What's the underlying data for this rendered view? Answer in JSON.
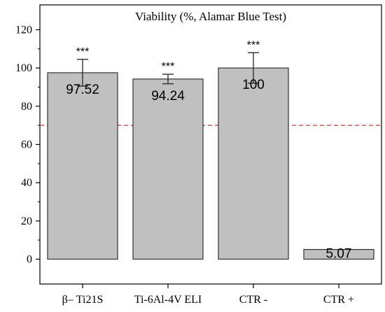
{
  "chart_data": {
    "type": "bar",
    "title": "Viability (%, Alamar Blue Test)",
    "categories": [
      "β– Ti21S",
      "Ti-6Al-4V ELI",
      "CTR -",
      "CTR +"
    ],
    "values": [
      97.52,
      94.24,
      100,
      5.07
    ],
    "value_labels": [
      "97.52",
      "94.24",
      "100",
      "5.07"
    ],
    "error_bars": [
      7,
      2.5,
      8,
      null
    ],
    "significance": [
      "***",
      "***",
      "***",
      ""
    ],
    "ylim": [
      -13,
      133
    ],
    "yticks": [
      0,
      20,
      40,
      60,
      80,
      100,
      120
    ],
    "reference_line": 70,
    "xlabel": "",
    "ylabel": "",
    "colors": {
      "bar_fill": "#c0c0c0",
      "bar_stroke": "#333333",
      "reference_line": "#d9463b",
      "axis": "#000000"
    },
    "grid": false
  }
}
